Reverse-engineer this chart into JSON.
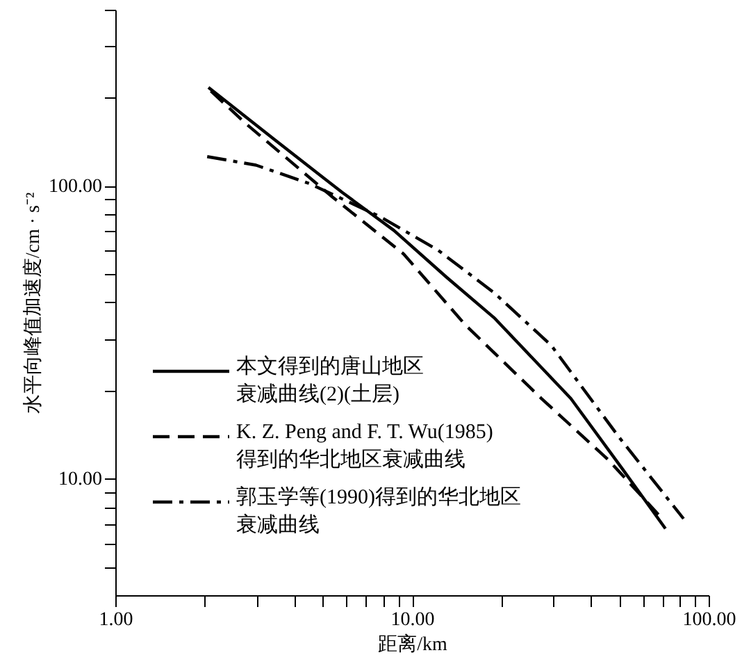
{
  "chart_data": {
    "type": "line",
    "xlabel": "距离/km",
    "ylabel": "水平向峰值加速度/cm · s⁻²",
    "log": "xy",
    "grid": false,
    "legend": "bottom left",
    "marker": "none",
    "xlim": [
      1,
      100
    ],
    "ylim": [
      4,
      400
    ],
    "xticks": [
      {
        "value": 1,
        "label": "1.00"
      },
      {
        "value": 2,
        "label": null
      },
      {
        "value": 3,
        "label": null
      },
      {
        "value": 4,
        "label": null
      },
      {
        "value": 5,
        "label": null
      },
      {
        "value": 6,
        "label": null
      },
      {
        "value": 7,
        "label": null
      },
      {
        "value": 8,
        "label": null
      },
      {
        "value": 9,
        "label": null
      },
      {
        "value": 10,
        "label": "10.00"
      },
      {
        "value": 20,
        "label": null
      },
      {
        "value": 30,
        "label": null
      },
      {
        "value": 40,
        "label": null
      },
      {
        "value": 50,
        "label": null
      },
      {
        "value": 60,
        "label": null
      },
      {
        "value": 70,
        "label": null
      },
      {
        "value": 80,
        "label": null
      },
      {
        "value": 90,
        "label": null
      },
      {
        "value": 100,
        "label": "100.00"
      }
    ],
    "yticks": [
      {
        "value": 5,
        "label": null
      },
      {
        "value": 6,
        "label": null
      },
      {
        "value": 7,
        "label": null
      },
      {
        "value": 8,
        "label": null
      },
      {
        "value": 9,
        "label": null
      },
      {
        "value": 10,
        "label": "10.00"
      },
      {
        "value": 20,
        "label": null
      },
      {
        "value": 30,
        "label": null
      },
      {
        "value": 40,
        "label": null
      },
      {
        "value": 50,
        "label": null
      },
      {
        "value": 60,
        "label": null
      },
      {
        "value": 70,
        "label": null
      },
      {
        "value": 80,
        "label": null
      },
      {
        "value": 90,
        "label": null
      },
      {
        "value": 100,
        "label": "100.00"
      },
      {
        "value": 200,
        "label": null
      },
      {
        "value": 300,
        "label": null
      },
      {
        "value": 400,
        "label": null
      }
    ],
    "series": [
      {
        "name": "本文得到的唐山地区衰减曲线(2)(土层)",
        "color": "#000000",
        "line_style": "solid",
        "x": [
          2.06,
          3.47,
          5.82,
          8.69,
          13.1,
          18.9,
          34.3,
          51.2,
          71.5
        ],
        "values": [
          217,
          143,
          95,
          70.5,
          48.7,
          35.5,
          18.8,
          10.8,
          6.75
        ]
      },
      {
        "name": "K. Z. Peng and F. T. Wu(1985) 得到的华北地区衰减曲线",
        "color": "#000000",
        "line_style": "dashed",
        "x": [
          2.1,
          2.76,
          5.4,
          9.37,
          15.1,
          27.3,
          45.9,
          68.5
        ],
        "values": [
          211,
          163,
          91.6,
          58.6,
          33.6,
          18.8,
          11.6,
          7.45
        ]
      },
      {
        "name": "郭玉学等(1990)得到的华北地区衰减曲线",
        "color": "#000000",
        "line_style": "dashdot",
        "x": [
          2.04,
          2.98,
          4.5,
          7.8,
          12.2,
          18.9,
          29.5,
          49.5,
          82.3
        ],
        "values": [
          126,
          117.8,
          102,
          78.6,
          60.5,
          43.2,
          28.5,
          14,
          7.3
        ]
      }
    ]
  }
}
